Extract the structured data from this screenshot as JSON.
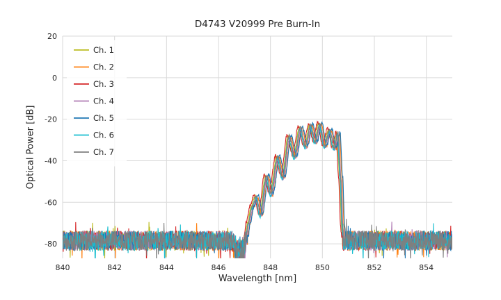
{
  "chart_data": {
    "type": "line",
    "title": "D4743 V20999 Pre Burn-In",
    "xlabel": "Wavelength [nm]",
    "ylabel": "Optical Power [dB]",
    "xlim": [
      840,
      855
    ],
    "ylim": [
      -87,
      20
    ],
    "xticks": [
      840,
      842,
      844,
      846,
      848,
      850,
      852,
      854
    ],
    "yticks": [
      20,
      0,
      -20,
      -40,
      -60,
      -80
    ],
    "grid": true,
    "legend_position": "upper-left",
    "background": "#ffffff",
    "grid_color": "#d9d9d9",
    "text_color": "#262626",
    "series": [
      {
        "name": "Ch. 1",
        "color": "#bcbd22",
        "x_offset_nm": -0.04,
        "y_offset_db": 0.0
      },
      {
        "name": "Ch. 2",
        "color": "#ff7f0e",
        "x_offset_nm": 0.06,
        "y_offset_db": -0.5
      },
      {
        "name": "Ch. 3",
        "color": "#d62728",
        "x_offset_nm": -0.08,
        "y_offset_db": 0.5
      },
      {
        "name": "Ch. 4",
        "color": "#af7ab3",
        "x_offset_nm": 0.02,
        "y_offset_db": -0.8
      },
      {
        "name": "Ch. 5",
        "color": "#1f77b4",
        "x_offset_nm": 0.08,
        "y_offset_db": 0.3
      },
      {
        "name": "Ch. 6",
        "color": "#17becf",
        "x_offset_nm": -0.02,
        "y_offset_db": -1.0
      },
      {
        "name": "Ch. 7",
        "color": "#7f7f7f",
        "x_offset_nm": 0.0,
        "y_offset_db": 0.0
      }
    ],
    "signal_envelope_db": [
      [
        847.0,
        -85
      ],
      [
        847.15,
        -70
      ],
      [
        847.3,
        -62
      ],
      [
        847.45,
        -57
      ],
      [
        847.62,
        -66
      ],
      [
        847.85,
        -47
      ],
      [
        848.02,
        -56
      ],
      [
        848.28,
        -38
      ],
      [
        848.48,
        -48
      ],
      [
        848.72,
        -28
      ],
      [
        848.93,
        -38
      ],
      [
        849.15,
        -24
      ],
      [
        849.35,
        -33
      ],
      [
        849.55,
        -22.5
      ],
      [
        849.72,
        -31
      ],
      [
        849.9,
        -22
      ],
      [
        850.08,
        -33
      ],
      [
        850.28,
        -25
      ],
      [
        850.45,
        -34
      ],
      [
        850.6,
        -26.5
      ],
      [
        850.7,
        -48
      ],
      [
        850.78,
        -72
      ],
      [
        850.86,
        -95
      ]
    ],
    "noise": {
      "floor_db": -78.5,
      "amplitude_db": 4.8,
      "spike_depth_db": 8,
      "notch": {
        "center_nm": 846.8,
        "width_nm": 0.55,
        "extra_depth_db": 9
      }
    },
    "signal_jitter_db": 0.7,
    "sample_step_nm": 0.012,
    "peak_summary": {
      "max_power_db": -22,
      "signal_band_nm": [
        847.1,
        850.8
      ],
      "noise_floor_db": -79
    }
  }
}
